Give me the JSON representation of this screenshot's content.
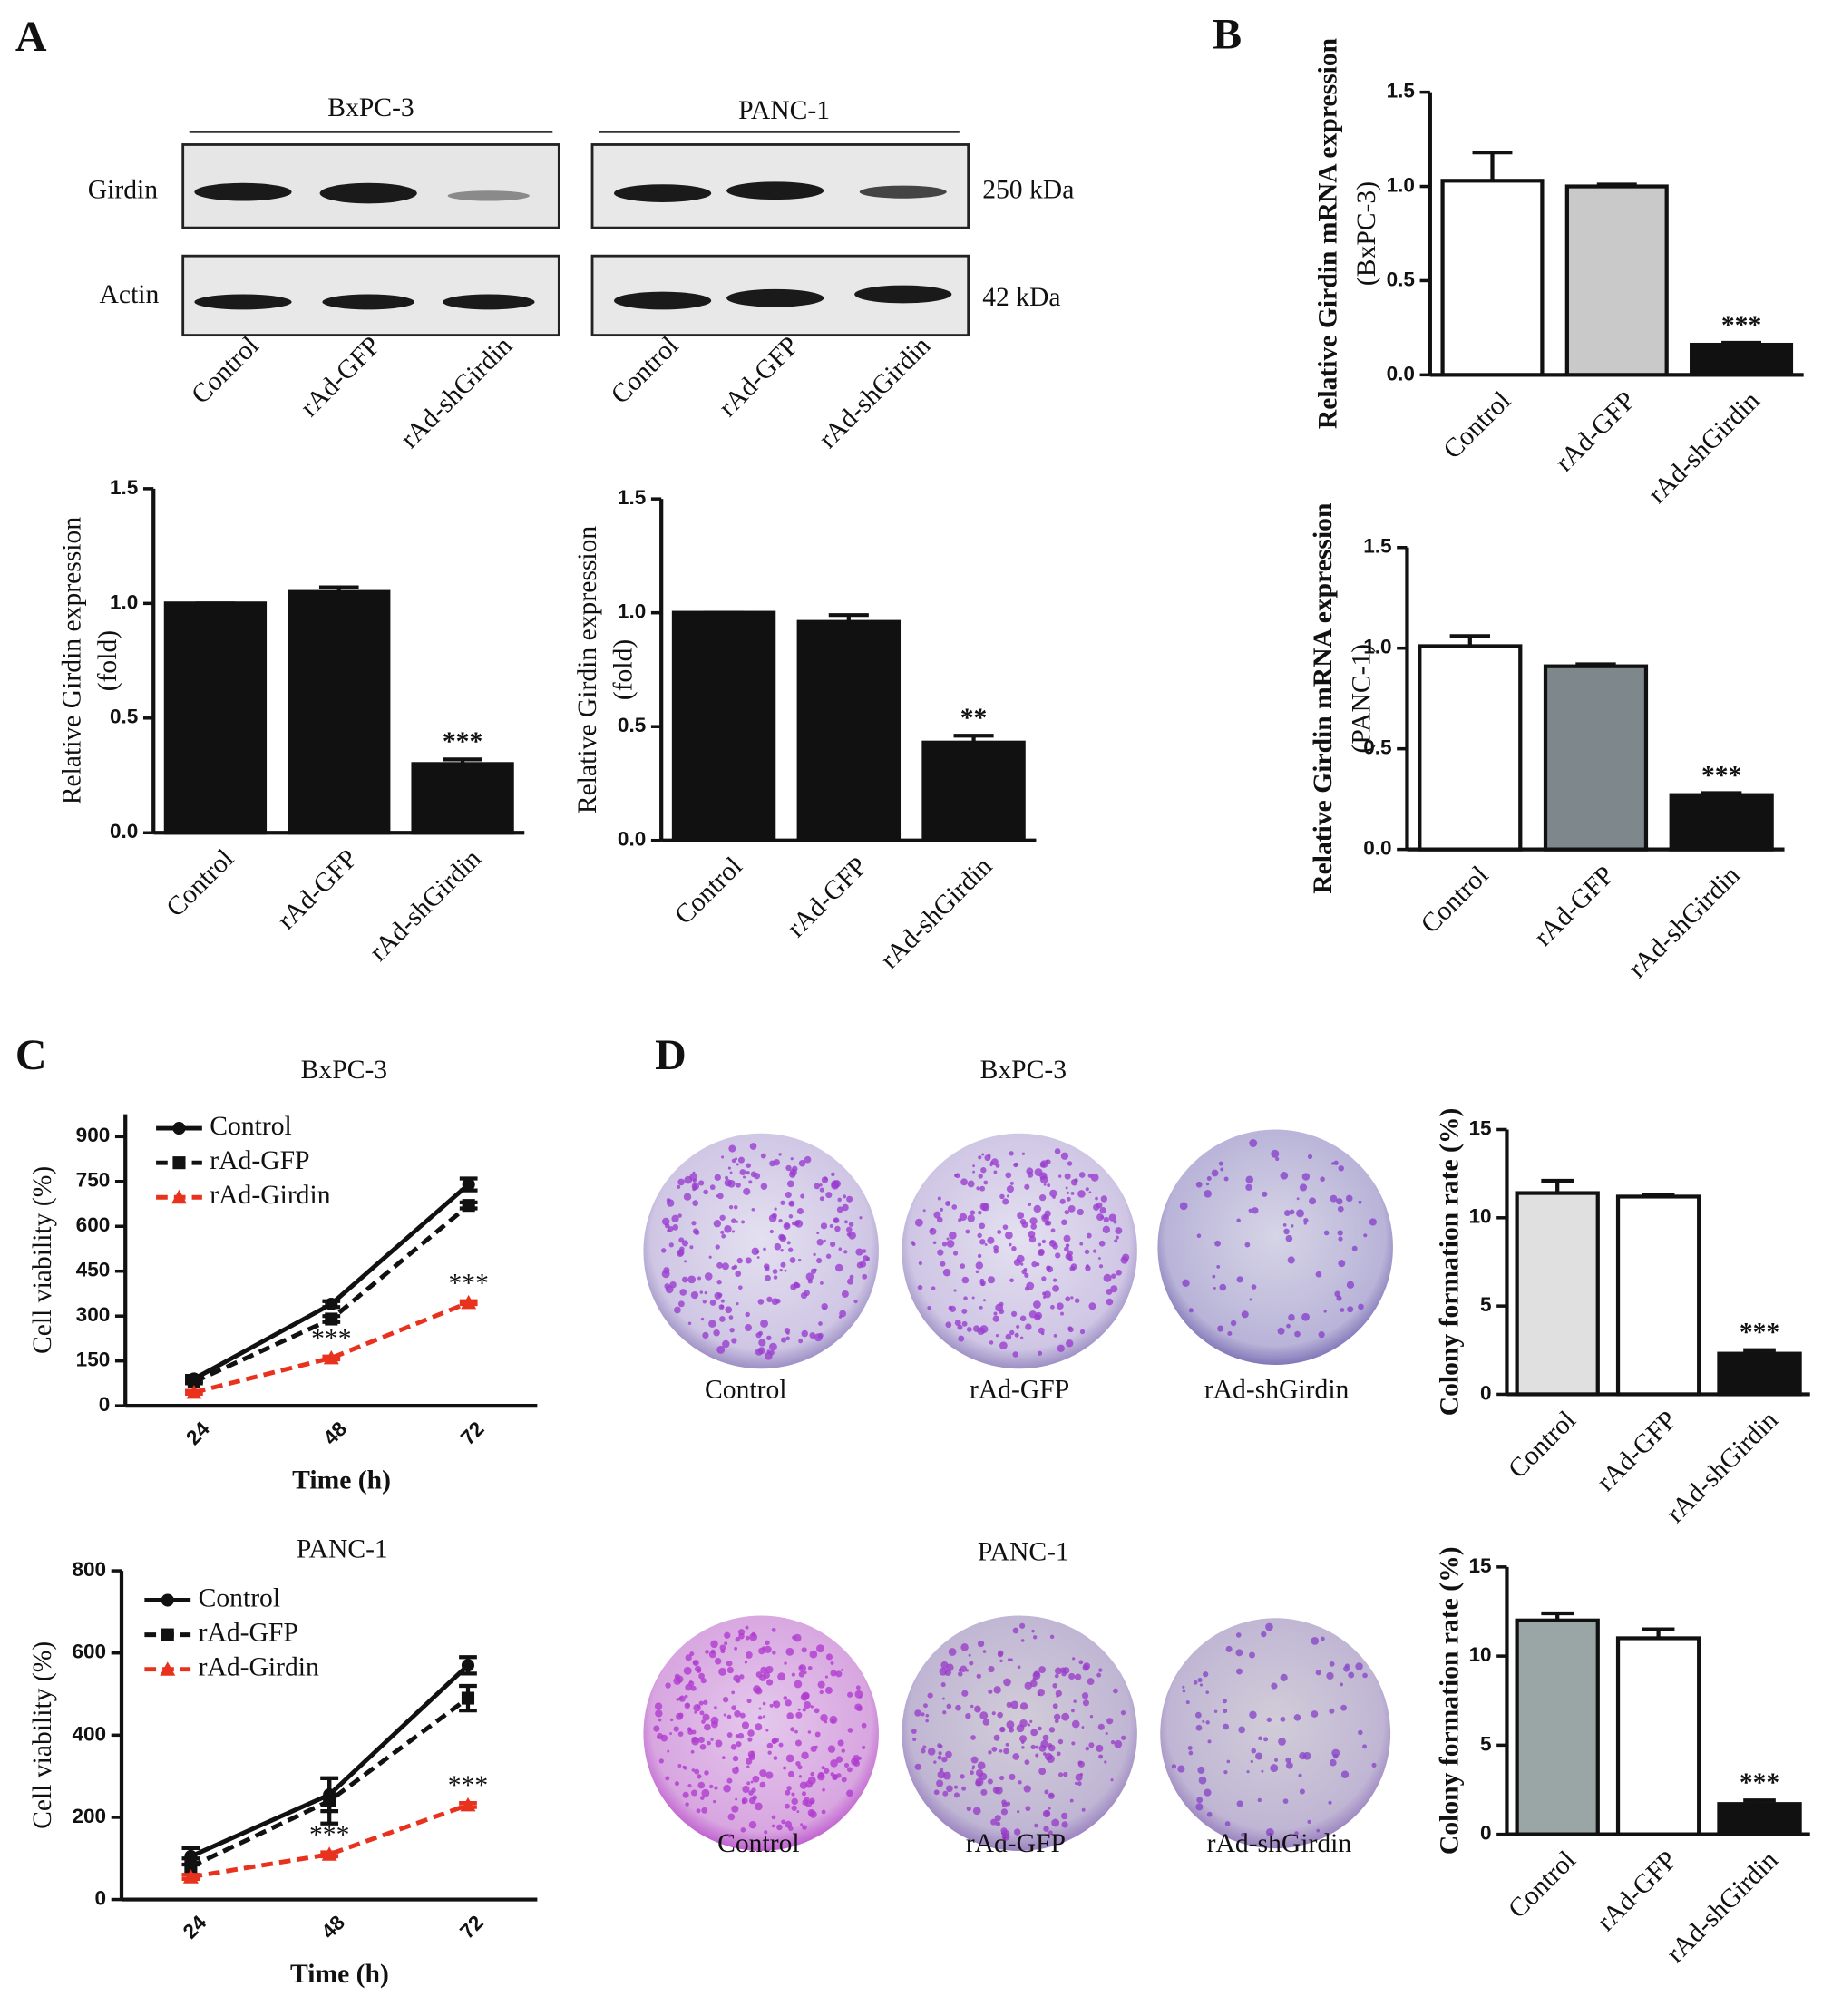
{
  "panel_labels": [
    "A",
    "B",
    "C",
    "D"
  ],
  "western_blot": {
    "cell_lines": [
      "BxPC-3",
      "PANC-1"
    ],
    "proteins": [
      "Girdin",
      "Actin"
    ],
    "sizes": [
      "250 kDa",
      "42 kDa"
    ],
    "lanes": [
      "Control",
      "rAd-GFP",
      "rAd-shGirdin"
    ]
  },
  "colony_assay": {
    "titles": [
      "BxPC-3",
      "PANC-1"
    ],
    "labels": [
      "Control",
      "rAd-GFP",
      "rAd-shGirdin"
    ]
  },
  "chart_data": [
    {
      "type": "bar",
      "ylabel": [
        "Relative Girdin expression",
        "(fold)"
      ],
      "categories": [
        "Control",
        "rAd-GFP",
        "rAd-shGirdin"
      ],
      "values": [
        1.0,
        1.05,
        0.3
      ],
      "errors": [
        0,
        0.02,
        0.02
      ],
      "colors": [
        "#111111",
        "#111111",
        "#111111"
      ],
      "significance": [
        null,
        null,
        "***"
      ],
      "ylim": [
        0,
        1.5
      ],
      "yticks": [
        {
          "value": 0,
          "label": "0.0"
        },
        {
          "value": 0.5,
          "label": "0.5"
        },
        {
          "value": 1,
          "label": "1.0"
        },
        {
          "value": 1.5,
          "label": "1.5"
        }
      ]
    },
    {
      "type": "bar",
      "ylabel": [
        "Relative Girdin expression",
        "(fold)"
      ],
      "categories": [
        "Control",
        "rAd-GFP",
        "rAd-shGirdin"
      ],
      "values": [
        1.0,
        0.96,
        0.43
      ],
      "errors": [
        0,
        0.03,
        0.03
      ],
      "colors": [
        "#111111",
        "#111111",
        "#111111"
      ],
      "significance": [
        null,
        null,
        "**"
      ],
      "ylim": [
        0,
        1.5
      ],
      "yticks": [
        {
          "value": 0,
          "label": "0.0"
        },
        {
          "value": 0.5,
          "label": "0.5"
        },
        {
          "value": 1,
          "label": "1.0"
        },
        {
          "value": 1.5,
          "label": "1.5"
        }
      ]
    },
    {
      "type": "bar",
      "ylabel": [
        "Relative Girdin mRNA expression",
        "(BxPC-3)"
      ],
      "categories": [
        "Control",
        "rAd-GFP",
        "rAd-shGirdin"
      ],
      "values": [
        1.03,
        1.0,
        0.16
      ],
      "errors": [
        0.15,
        0.01,
        0.01
      ],
      "colors": [
        "#ffffff",
        "#c9c9c9",
        "#111111"
      ],
      "significance": [
        null,
        null,
        "***"
      ],
      "ylim": [
        0,
        1.5
      ],
      "yticks": [
        {
          "value": 0,
          "label": "0.0"
        },
        {
          "value": 0.5,
          "label": "0.5"
        },
        {
          "value": 1,
          "label": "1.0"
        },
        {
          "value": 1.5,
          "label": "1.5"
        }
      ]
    },
    {
      "type": "bar",
      "ylabel": [
        "Relative Girdin mRNA expression",
        "(PANC-1)"
      ],
      "categories": [
        "Control",
        "rAd-GFP",
        "rAd-shGirdin"
      ],
      "values": [
        1.01,
        0.91,
        0.27
      ],
      "errors": [
        0.05,
        0.01,
        0.01
      ],
      "colors": [
        "#ffffff",
        "#7e888c",
        "#111111"
      ],
      "significance": [
        null,
        null,
        "***"
      ],
      "ylim": [
        0,
        1.5
      ],
      "yticks": [
        {
          "value": 0,
          "label": "0.0"
        },
        {
          "value": 0.5,
          "label": "0.5"
        },
        {
          "value": 1,
          "label": "1.0"
        },
        {
          "value": 1.5,
          "label": "1.5"
        }
      ]
    },
    {
      "type": "line",
      "title": "BxPC-3",
      "xlabel": "Time (h)",
      "ylabel": "Cell viability (%)",
      "categories": [
        "24",
        "48",
        "72"
      ],
      "ylim": [
        0,
        975
      ],
      "yticks": [
        0,
        150,
        300,
        450,
        600,
        750,
        900
      ],
      "legend": "upper left",
      "series": [
        {
          "name": "Control",
          "color": "#111111",
          "line_style": "solid",
          "marker": "circle",
          "values": [
            90,
            340,
            740
          ],
          "errors": [
            10,
            10,
            20
          ],
          "significance": [
            null,
            null,
            null
          ]
        },
        {
          "name": "rAd-GFP",
          "color": "#111111",
          "line_style": "dashed",
          "marker": "square",
          "values": [
            80,
            290,
            670
          ],
          "errors": [
            5,
            10,
            10
          ],
          "significance": [
            null,
            null,
            null
          ]
        },
        {
          "name": "rAd-Girdin",
          "color": "#e8321e",
          "line_style": "dashed",
          "marker": "triangle",
          "values": [
            45,
            160,
            345
          ],
          "errors": [
            5,
            5,
            5
          ],
          "significance": [
            null,
            "***",
            "***"
          ]
        }
      ]
    },
    {
      "type": "line",
      "title": "PANC-1",
      "xlabel": "Time (h)",
      "ylabel": "Cell viability (%)",
      "categories": [
        "24",
        "48",
        "72"
      ],
      "ylim": [
        0,
        800
      ],
      "yticks": [
        0,
        200,
        400,
        600,
        800
      ],
      "legend": "upper left",
      "series": [
        {
          "name": "Control",
          "color": "#111111",
          "line_style": "solid",
          "marker": "circle",
          "values": [
            105,
            255,
            570
          ],
          "errors": [
            20,
            40,
            20
          ],
          "significance": [
            null,
            null,
            null
          ]
        },
        {
          "name": "rAd-GFP",
          "color": "#111111",
          "line_style": "dashed",
          "marker": "square",
          "values": [
            80,
            240,
            490
          ],
          "errors": [
            20,
            55,
            30
          ],
          "significance": [
            null,
            null,
            null
          ]
        },
        {
          "name": "rAd-Girdin",
          "color": "#e8321e",
          "line_style": "dashed",
          "marker": "triangle",
          "values": [
            55,
            110,
            230
          ],
          "errors": [
            5,
            5,
            5
          ],
          "significance": [
            null,
            "***",
            "***"
          ]
        }
      ]
    },
    {
      "type": "bar",
      "ylabel": [
        "Colony formation rate (%)"
      ],
      "categories": [
        "Control",
        "rAd-GFP",
        "rAd-shGirdin"
      ],
      "values": [
        11.4,
        11.2,
        2.3
      ],
      "errors": [
        0.7,
        0.1,
        0.2
      ],
      "colors": [
        "#e0e0e0",
        "#ffffff",
        "#111111"
      ],
      "significance": [
        null,
        null,
        "***"
      ],
      "ylim": [
        0,
        15
      ],
      "yticks": [
        0,
        5,
        10,
        15
      ]
    },
    {
      "type": "bar",
      "ylabel": [
        "Colony formation rate (%)"
      ],
      "categories": [
        "Control",
        "rAd-GFP",
        "rAd-shGirdin"
      ],
      "values": [
        12.0,
        11.0,
        1.7
      ],
      "errors": [
        0.4,
        0.5,
        0.2
      ],
      "colors": [
        "#9aa5a5",
        "#ffffff",
        "#111111"
      ],
      "significance": [
        null,
        null,
        "***"
      ],
      "ylim": [
        0,
        15
      ],
      "yticks": [
        0,
        5,
        10,
        15
      ]
    }
  ]
}
